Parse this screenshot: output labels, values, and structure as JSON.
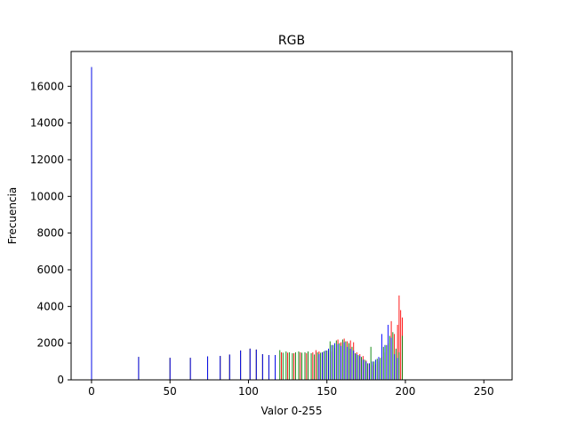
{
  "chart_data": {
    "type": "bar",
    "title": "RGB",
    "xlabel": "Valor 0-255",
    "ylabel": "Frecuencia",
    "xlim": [
      -13,
      268
    ],
    "ylim": [
      0,
      17900
    ],
    "xticks": [
      0,
      50,
      100,
      150,
      200,
      250
    ],
    "yticks": [
      0,
      2000,
      4000,
      6000,
      8000,
      10000,
      12000,
      14000,
      16000
    ],
    "grid": false,
    "legend": "none",
    "series": [
      {
        "color": "#ff0000",
        "x": [
          0,
          30,
          50,
          63,
          74,
          82,
          88,
          95,
          101,
          105,
          109,
          113,
          117,
          121,
          125,
          129,
          133,
          137,
          141,
          143,
          145,
          147,
          149,
          151,
          153,
          155,
          157,
          159,
          161,
          163,
          165,
          167,
          169,
          171,
          173,
          175,
          177,
          179,
          181,
          183,
          185,
          187,
          189,
          191,
          193,
          195,
          196,
          197,
          198
        ],
        "values": [
          17050,
          1250,
          1200,
          1200,
          1280,
          1300,
          1380,
          1600,
          1700,
          1650,
          1400,
          1350,
          1350,
          1500,
          1480,
          1450,
          1500,
          1450,
          1500,
          1620,
          1550,
          1500,
          1580,
          1620,
          1550,
          1750,
          2200,
          2050,
          2250,
          2100,
          2150,
          2050,
          1500,
          1400,
          1300,
          1050,
          900,
          800,
          850,
          1000,
          1250,
          1500,
          2000,
          3200,
          2500,
          3000,
          4600,
          3800,
          3400
        ]
      },
      {
        "color": "#008000",
        "x": [
          0,
          30,
          50,
          63,
          74,
          82,
          88,
          95,
          101,
          105,
          109,
          113,
          117,
          120,
          122,
          124,
          126,
          128,
          130,
          132,
          134,
          136,
          138,
          140,
          142,
          144,
          146,
          148,
          150,
          152,
          154,
          156,
          158,
          160,
          162,
          164,
          166,
          168,
          170,
          172,
          174,
          176,
          178,
          180,
          182,
          184,
          186,
          188,
          190,
          192,
          194,
          196,
          198
        ],
        "values": [
          17050,
          1250,
          1200,
          1200,
          1280,
          1300,
          1380,
          1600,
          1700,
          1650,
          1400,
          1350,
          1350,
          1620,
          1480,
          1550,
          1500,
          1450,
          1500,
          1550,
          1480,
          1500,
          1550,
          1450,
          1380,
          1500,
          1480,
          1550,
          1600,
          2100,
          1900,
          2150,
          2000,
          2200,
          2100,
          2000,
          1800,
          1450,
          1350,
          1250,
          1100,
          900,
          1800,
          1000,
          1150,
          1200,
          1800,
          1900,
          2400,
          2600,
          1700,
          1500,
          2400
        ]
      },
      {
        "color": "#0000ff",
        "x": [
          0,
          30,
          50,
          63,
          74,
          82,
          88,
          95,
          101,
          105,
          109,
          113,
          117,
          145,
          147,
          149,
          151,
          153,
          155,
          157,
          159,
          161,
          163,
          165,
          167,
          169,
          171,
          173,
          175,
          177,
          179,
          181,
          183,
          185,
          187,
          189,
          191,
          193,
          195
        ],
        "values": [
          17050,
          1250,
          1200,
          1200,
          1280,
          1300,
          1380,
          1600,
          1700,
          1650,
          1400,
          1350,
          1350,
          1400,
          1500,
          1600,
          1700,
          1900,
          2000,
          1950,
          1850,
          2050,
          1800,
          1700,
          1600,
          1400,
          1300,
          1100,
          1000,
          900,
          1000,
          1100,
          1250,
          2500,
          1900,
          3000,
          2300,
          1400,
          1200
        ]
      }
    ]
  }
}
